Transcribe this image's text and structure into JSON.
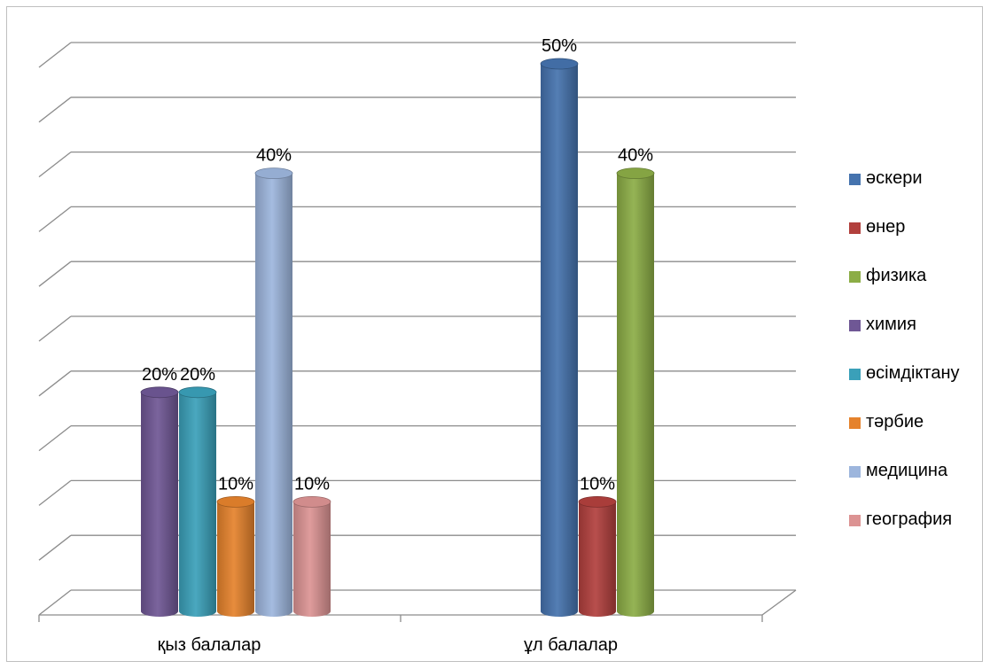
{
  "chart_data": {
    "type": "bar",
    "title": "",
    "xlabel": "",
    "ylabel": "",
    "ylim": [
      0,
      0.5
    ],
    "grid": true,
    "legend_position": "right",
    "categories": [
      "қыз балалар",
      "ұл балалар"
    ],
    "series": [
      {
        "name": "әскери",
        "color": "#4573ae",
        "values": [
          null,
          0.5
        ],
        "labels": [
          null,
          "50%"
        ]
      },
      {
        "name": "өнер",
        "color": "#b2403d",
        "values": [
          null,
          0.1
        ],
        "labels": [
          null,
          "10%"
        ]
      },
      {
        "name": "физика",
        "color": "#8cad46",
        "values": [
          null,
          0.4
        ],
        "labels": [
          null,
          "40%"
        ]
      },
      {
        "name": "химия",
        "color": "#6f5795",
        "values": [
          0.2,
          null
        ],
        "labels": [
          "20%",
          null
        ]
      },
      {
        "name": "өсімдіктану",
        "color": "#3aa0b9",
        "values": [
          0.2,
          null
        ],
        "labels": [
          "20%",
          null
        ]
      },
      {
        "name": "тәрбие",
        "color": "#e5822c",
        "values": [
          0.1,
          null
        ],
        "labels": [
          "10%",
          null
        ]
      },
      {
        "name": "медицина",
        "color": "#9db6dd",
        "values": [
          0.4,
          null
        ],
        "labels": [
          "40%",
          null
        ]
      },
      {
        "name": "география",
        "color": "#dc9393",
        "values": [
          0.1,
          null
        ],
        "labels": [
          "10%",
          null
        ]
      }
    ]
  }
}
